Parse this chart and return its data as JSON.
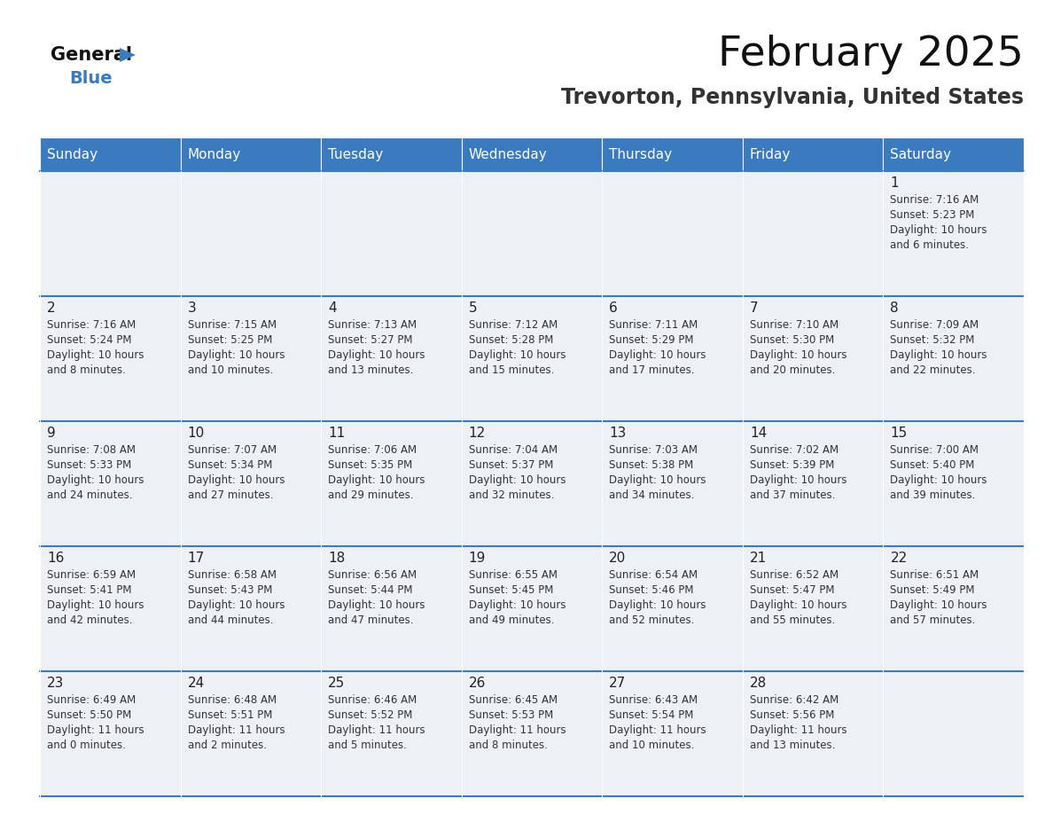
{
  "title": "February 2025",
  "subtitle": "Trevorton, Pennsylvania, United States",
  "header_color": "#3a7abf",
  "header_text_color": "#ffffff",
  "cell_bg_even": "#eef2f7",
  "cell_bg_odd": "#eef2f7",
  "border_color": "#3a7abf",
  "text_color": "#333333",
  "days_of_week": [
    "Sunday",
    "Monday",
    "Tuesday",
    "Wednesday",
    "Thursday",
    "Friday",
    "Saturday"
  ],
  "calendar_data": [
    [
      null,
      null,
      null,
      null,
      null,
      null,
      {
        "day": "1",
        "sunrise": "7:16 AM",
        "sunset": "5:23 PM",
        "daylight_h": "10 hours",
        "daylight_m": "6 minutes."
      }
    ],
    [
      {
        "day": "2",
        "sunrise": "7:16 AM",
        "sunset": "5:24 PM",
        "daylight_h": "10 hours",
        "daylight_m": "8 minutes."
      },
      {
        "day": "3",
        "sunrise": "7:15 AM",
        "sunset": "5:25 PM",
        "daylight_h": "10 hours",
        "daylight_m": "10 minutes."
      },
      {
        "day": "4",
        "sunrise": "7:13 AM",
        "sunset": "5:27 PM",
        "daylight_h": "10 hours",
        "daylight_m": "13 minutes."
      },
      {
        "day": "5",
        "sunrise": "7:12 AM",
        "sunset": "5:28 PM",
        "daylight_h": "10 hours",
        "daylight_m": "15 minutes."
      },
      {
        "day": "6",
        "sunrise": "7:11 AM",
        "sunset": "5:29 PM",
        "daylight_h": "10 hours",
        "daylight_m": "17 minutes."
      },
      {
        "day": "7",
        "sunrise": "7:10 AM",
        "sunset": "5:30 PM",
        "daylight_h": "10 hours",
        "daylight_m": "20 minutes."
      },
      {
        "day": "8",
        "sunrise": "7:09 AM",
        "sunset": "5:32 PM",
        "daylight_h": "10 hours",
        "daylight_m": "22 minutes."
      }
    ],
    [
      {
        "day": "9",
        "sunrise": "7:08 AM",
        "sunset": "5:33 PM",
        "daylight_h": "10 hours",
        "daylight_m": "24 minutes."
      },
      {
        "day": "10",
        "sunrise": "7:07 AM",
        "sunset": "5:34 PM",
        "daylight_h": "10 hours",
        "daylight_m": "27 minutes."
      },
      {
        "day": "11",
        "sunrise": "7:06 AM",
        "sunset": "5:35 PM",
        "daylight_h": "10 hours",
        "daylight_m": "29 minutes."
      },
      {
        "day": "12",
        "sunrise": "7:04 AM",
        "sunset": "5:37 PM",
        "daylight_h": "10 hours",
        "daylight_m": "32 minutes."
      },
      {
        "day": "13",
        "sunrise": "7:03 AM",
        "sunset": "5:38 PM",
        "daylight_h": "10 hours",
        "daylight_m": "34 minutes."
      },
      {
        "day": "14",
        "sunrise": "7:02 AM",
        "sunset": "5:39 PM",
        "daylight_h": "10 hours",
        "daylight_m": "37 minutes."
      },
      {
        "day": "15",
        "sunrise": "7:00 AM",
        "sunset": "5:40 PM",
        "daylight_h": "10 hours",
        "daylight_m": "39 minutes."
      }
    ],
    [
      {
        "day": "16",
        "sunrise": "6:59 AM",
        "sunset": "5:41 PM",
        "daylight_h": "10 hours",
        "daylight_m": "42 minutes."
      },
      {
        "day": "17",
        "sunrise": "6:58 AM",
        "sunset": "5:43 PM",
        "daylight_h": "10 hours",
        "daylight_m": "44 minutes."
      },
      {
        "day": "18",
        "sunrise": "6:56 AM",
        "sunset": "5:44 PM",
        "daylight_h": "10 hours",
        "daylight_m": "47 minutes."
      },
      {
        "day": "19",
        "sunrise": "6:55 AM",
        "sunset": "5:45 PM",
        "daylight_h": "10 hours",
        "daylight_m": "49 minutes."
      },
      {
        "day": "20",
        "sunrise": "6:54 AM",
        "sunset": "5:46 PM",
        "daylight_h": "10 hours",
        "daylight_m": "52 minutes."
      },
      {
        "day": "21",
        "sunrise": "6:52 AM",
        "sunset": "5:47 PM",
        "daylight_h": "10 hours",
        "daylight_m": "55 minutes."
      },
      {
        "day": "22",
        "sunrise": "6:51 AM",
        "sunset": "5:49 PM",
        "daylight_h": "10 hours",
        "daylight_m": "57 minutes."
      }
    ],
    [
      {
        "day": "23",
        "sunrise": "6:49 AM",
        "sunset": "5:50 PM",
        "daylight_h": "11 hours",
        "daylight_m": "0 minutes."
      },
      {
        "day": "24",
        "sunrise": "6:48 AM",
        "sunset": "5:51 PM",
        "daylight_h": "11 hours",
        "daylight_m": "2 minutes."
      },
      {
        "day": "25",
        "sunrise": "6:46 AM",
        "sunset": "5:52 PM",
        "daylight_h": "11 hours",
        "daylight_m": "5 minutes."
      },
      {
        "day": "26",
        "sunrise": "6:45 AM",
        "sunset": "5:53 PM",
        "daylight_h": "11 hours",
        "daylight_m": "8 minutes."
      },
      {
        "day": "27",
        "sunrise": "6:43 AM",
        "sunset": "5:54 PM",
        "daylight_h": "11 hours",
        "daylight_m": "10 minutes."
      },
      {
        "day": "28",
        "sunrise": "6:42 AM",
        "sunset": "5:56 PM",
        "daylight_h": "11 hours",
        "daylight_m": "13 minutes."
      },
      null
    ]
  ]
}
